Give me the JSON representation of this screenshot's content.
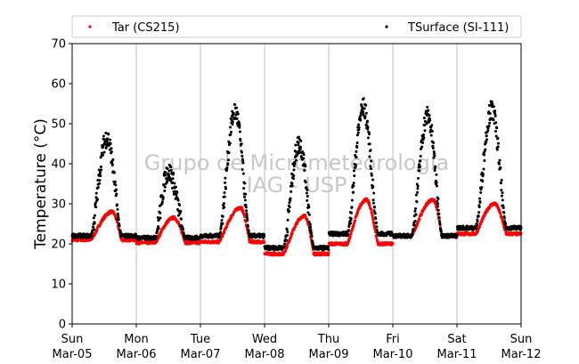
{
  "chart_data": {
    "type": "scatter",
    "title": "",
    "xlabel": "",
    "ylabel": "Temperature (°C)",
    "ylim": [
      0,
      70
    ],
    "yticks": [
      0,
      10,
      20,
      30,
      40,
      50,
      60,
      70
    ],
    "xlim": [
      "2017-03-05T00:00",
      "2017-03-12T00:00"
    ],
    "xticks": [
      {
        "day": "Sun",
        "date": "Mar-05"
      },
      {
        "day": "Mon",
        "date": "Mar-06"
      },
      {
        "day": "Tue",
        "date": "Mar-07"
      },
      {
        "day": "Wed",
        "date": "Mar-08"
      },
      {
        "day": "Thu",
        "date": "Mar-09"
      },
      {
        "day": "Fri",
        "date": "Mar-10"
      },
      {
        "day": "Sat",
        "date": "Mar-11"
      },
      {
        "day": "Sun",
        "date": "Mar-12"
      }
    ],
    "grid": "vertical",
    "legend_placement": "top",
    "watermark": [
      "Grupo de Micrometeorologia",
      "IAG - USP"
    ],
    "series": [
      {
        "name": "Tar (CS215)",
        "color": "#ff0000",
        "daily": [
          {
            "min": 21.0,
            "peak": 28.0,
            "peak_hour": 15
          },
          {
            "min": 20.3,
            "peak": 26.5,
            "peak_hour": 14
          },
          {
            "min": 20.5,
            "peak": 29.0,
            "peak_hour": 15
          },
          {
            "min": 17.5,
            "peak": 27.0,
            "peak_hour": 15
          },
          {
            "min": 20.0,
            "peak": 31.0,
            "peak_hour": 14
          },
          {
            "min": 22.0,
            "peak": 31.0,
            "peak_hour": 15
          },
          {
            "min": 22.5,
            "peak": 30.0,
            "peak_hour": 14
          }
        ]
      },
      {
        "name": "TSurface (SI-111)",
        "color": "#000000",
        "daily": [
          {
            "min": 22.0,
            "peak": 46.5,
            "peak_hour": 13
          },
          {
            "min": 21.5,
            "peak": 38.0,
            "peak_hour": 12
          },
          {
            "min": 22.0,
            "peak": 53.0,
            "peak_hour": 13
          },
          {
            "min": 19.0,
            "peak": 45.0,
            "peak_hour": 13
          },
          {
            "min": 22.5,
            "peak": 54.0,
            "peak_hour": 13
          },
          {
            "min": 22.0,
            "peak": 52.0,
            "peak_hour": 13
          },
          {
            "min": 24.0,
            "peak": 53.5,
            "peak_hour": 13
          }
        ]
      }
    ]
  }
}
